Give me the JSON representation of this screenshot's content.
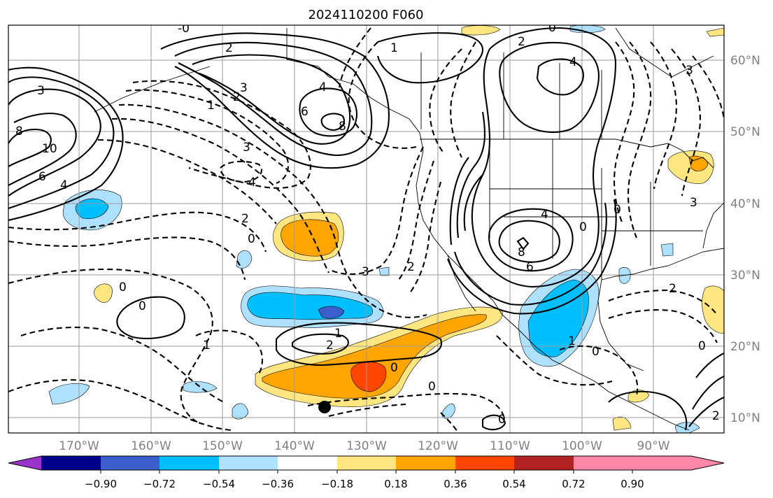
{
  "title": "2024110200 F060",
  "map": {
    "longitude_labels": [
      "170°W",
      "160°W",
      "150°W",
      "140°W",
      "130°W",
      "120°W",
      "110°W",
      "100°W",
      "90°W"
    ],
    "latitude_labels": [
      "60°N",
      "50°N",
      "40°N",
      "30°N",
      "20°N",
      "10°N"
    ]
  },
  "contour_labels": {
    "solid": [
      "-0",
      "2",
      "1",
      "4",
      "4",
      "3",
      "2",
      "3",
      "6",
      "8",
      "10",
      "8",
      "6",
      "4",
      "4",
      "8",
      "6",
      "0",
      "1",
      "2",
      "0",
      "2"
    ],
    "dashed": [
      "1",
      "3",
      "4",
      "2",
      "0",
      "3",
      "2",
      "0",
      "0",
      "1",
      "0",
      "0",
      "0",
      "2",
      "0",
      "3",
      "1",
      "0",
      "2",
      "0",
      "3"
    ]
  },
  "colorbar": {
    "ticks": [
      "−0.90",
      "−0.72",
      "−0.54",
      "−0.36",
      "−0.18",
      "0.18",
      "0.36",
      "0.54",
      "0.72",
      "0.90"
    ],
    "colors": [
      "#9933cc",
      "#00008b",
      "#3a5fcd",
      "#00bfff",
      "#aee0ff",
      "#ffffff",
      "#ffe680",
      "#ffa500",
      "#ff4500",
      "#b22222",
      "#ff88aa"
    ]
  }
}
